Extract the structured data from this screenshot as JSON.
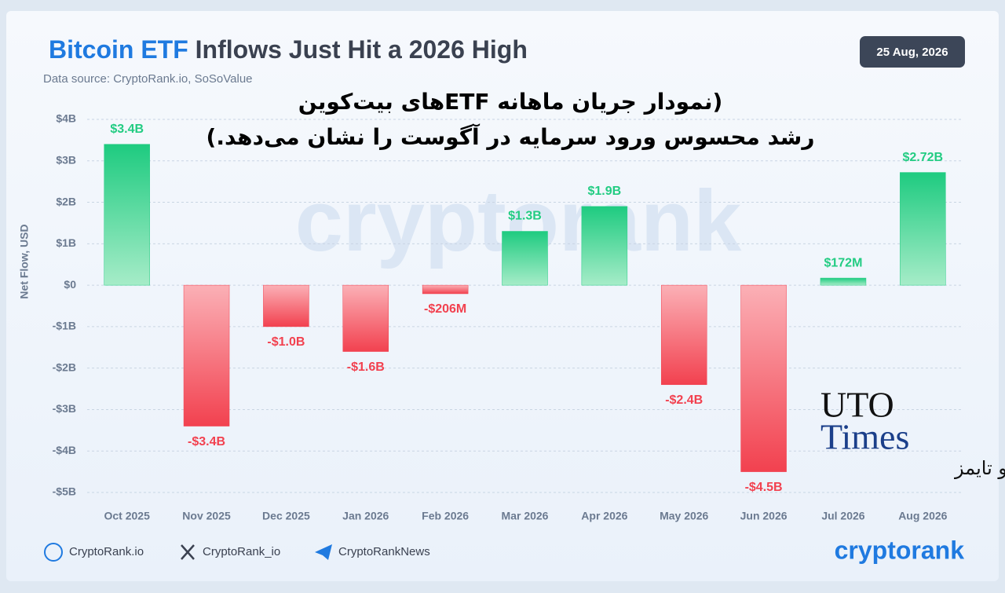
{
  "chart_data": {
    "type": "bar",
    "title_highlight": "Bitcoin ETF",
    "title": "Inflows Just Hit a 2026 High",
    "date": "25 Aug, 2026",
    "subtitle": "Data source: CryptoRank.io, SoSoValue",
    "annotation_lines": [
      "(نمودار جریان ماهانه ETFهای بیت‌کوین",
      "رشد محسوس ورود سرمایه در آگوست را نشان می‌دهد.)"
    ],
    "y_label": "Net Flow, USD",
    "categories": [
      "Oct 2025",
      "Nov 2025",
      "Dec 2025",
      "Jan 2026",
      "Feb 2026",
      "Mar 2026",
      "Apr 2026",
      "May 2026",
      "Jun 2026",
      "Jul 2026",
      "Aug 2026"
    ],
    "values": [
      3.4,
      -3.4,
      -1.0,
      -1.6,
      -0.206,
      1.3,
      1.9,
      -2.4,
      -4.5,
      0.172,
      2.72
    ],
    "value_labels": [
      "$3.4B",
      "-$3.4B",
      "-$1.0B",
      "-$1.6B",
      "-$206M",
      "$1.3B",
      "$1.9B",
      "-$2.4B",
      "-$4.5B",
      "$172M",
      "$2.72B"
    ],
    "positive_color": "#22cc82",
    "negative_color": "#f2414f",
    "ylim": [
      -5,
      4
    ],
    "yticks": [
      {
        "value": 4,
        "label": "$4B"
      },
      {
        "value": 3,
        "label": "$3B"
      },
      {
        "value": 2,
        "label": "$2B"
      },
      {
        "value": 1,
        "label": "$1B"
      },
      {
        "value": 0,
        "label": "$0"
      },
      {
        "value": -1,
        "label": "-$1B"
      },
      {
        "value": -2,
        "label": "-$2B"
      },
      {
        "value": -3,
        "label": "-$3B"
      },
      {
        "value": -4,
        "label": "-$4B"
      },
      {
        "value": -5,
        "label": "-$5B"
      }
    ],
    "grid": true,
    "footer_links": [
      "CryptoRank.io",
      "CryptoRank_io",
      "CryptoRankNews"
    ],
    "brand": "cryptorank",
    "watermark": "cryptorank",
    "overlay_logo": {
      "line1": "UTO",
      "line2": "Times",
      "line3": "یوتو تایمز"
    }
  }
}
